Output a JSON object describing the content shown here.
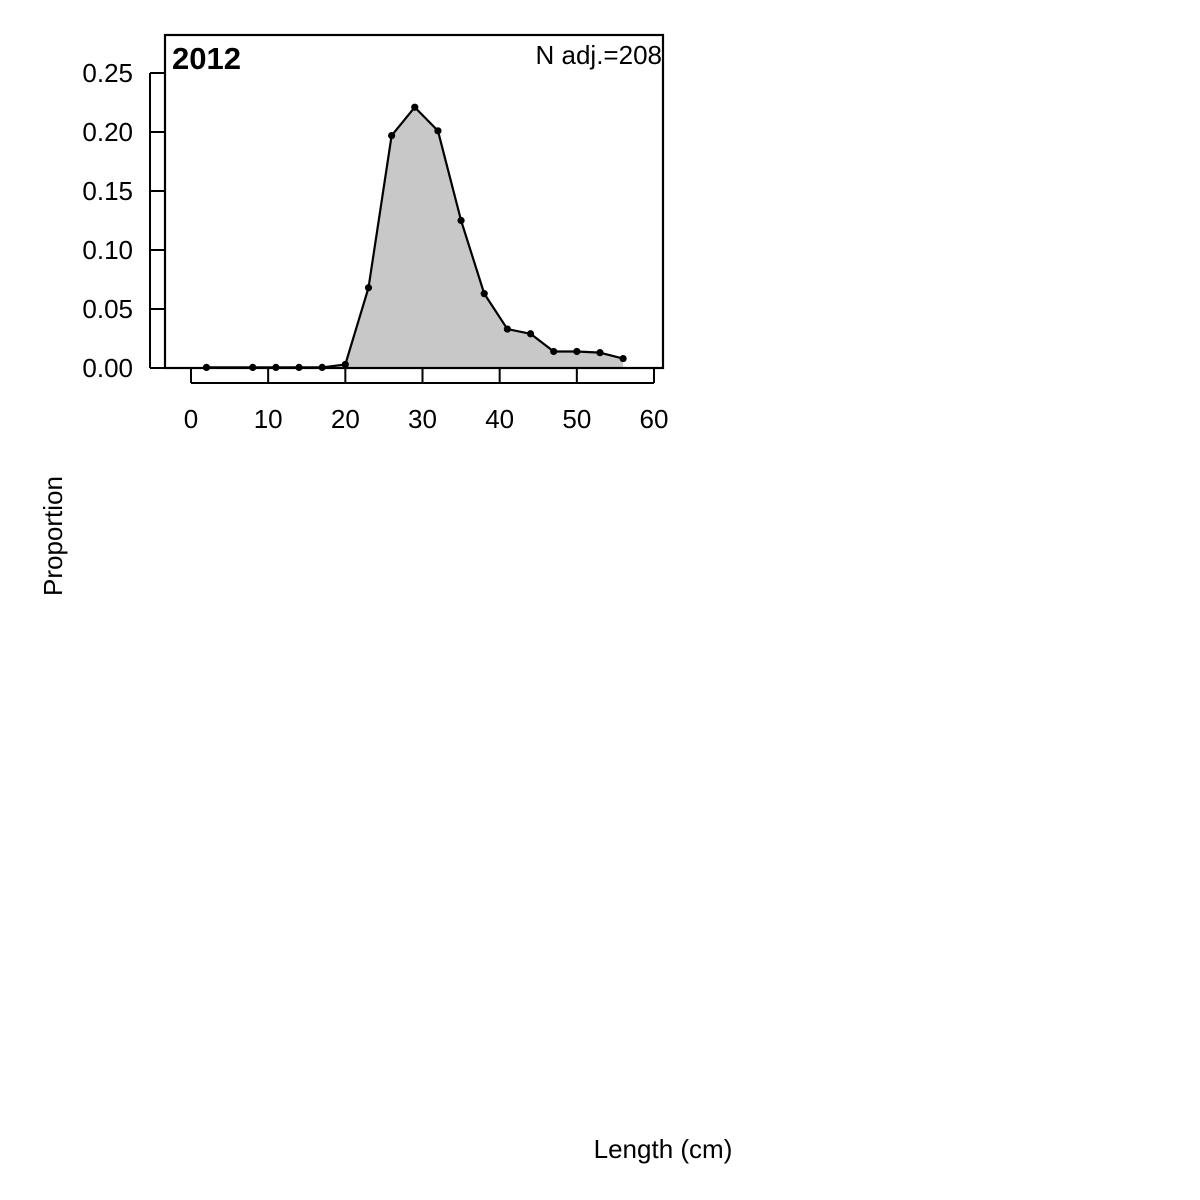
{
  "chart_data": {
    "type": "area",
    "title": "2012",
    "annotation": "N adj.=208",
    "xlabel": "Length (cm)",
    "ylabel": "Proportion",
    "xlim": [
      -2,
      61
    ],
    "ylim": [
      0,
      0.28
    ],
    "x_ticks": [
      "0",
      "10",
      "20",
      "30",
      "40",
      "50",
      "60"
    ],
    "x_tick_values": [
      0,
      10,
      20,
      30,
      40,
      50,
      60
    ],
    "y_ticks": [
      "0.00",
      "0.05",
      "0.10",
      "0.15",
      "0.20",
      "0.25"
    ],
    "y_tick_values": [
      0,
      0.05,
      0.1,
      0.15,
      0.2,
      0.25
    ],
    "grid": false,
    "fill_color": "#c8c8c8",
    "line_color": "#000000",
    "series": [
      {
        "x": [
          2,
          8,
          11,
          14,
          17,
          20,
          23,
          26,
          29,
          32,
          35,
          38,
          41,
          44,
          47,
          50,
          53,
          56
        ],
        "values": [
          0.0005,
          0.0005,
          0.0005,
          0.0005,
          0.0005,
          0.003,
          0.068,
          0.197,
          0.221,
          0.201,
          0.125,
          0.063,
          0.033,
          0.029,
          0.014,
          0.014,
          0.013,
          0.008
        ]
      }
    ]
  }
}
